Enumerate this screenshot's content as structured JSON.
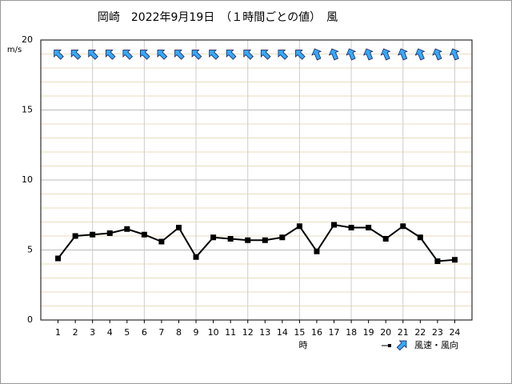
{
  "chart_data": {
    "type": "line",
    "title": "岡崎　2022年9月19日　（１時間ごとの値）　風",
    "y_label": "m/s",
    "x_label": "時",
    "x": [
      1,
      2,
      3,
      4,
      5,
      6,
      7,
      8,
      9,
      10,
      11,
      12,
      13,
      14,
      15,
      16,
      17,
      18,
      19,
      20,
      21,
      22,
      23,
      24
    ],
    "series": [
      {
        "name": "風速・風向",
        "color": "#000000",
        "arrow_color": "#33aaff",
        "values": [
          4.4,
          6.0,
          6.1,
          6.2,
          6.5,
          6.1,
          5.6,
          6.6,
          4.5,
          5.9,
          5.8,
          5.7,
          5.7,
          5.9,
          6.7,
          4.9,
          6.8,
          6.6,
          6.6,
          5.8,
          6.7,
          5.9,
          4.2,
          4.3
        ],
        "arrow_angles": [
          315,
          315,
          315,
          315,
          315,
          315,
          315,
          315,
          315,
          315,
          315,
          315,
          315,
          315,
          315,
          337.5,
          337.5,
          337.5,
          337.5,
          337.5,
          337.5,
          337.5,
          337.5,
          337.5
        ]
      }
    ],
    "xlim": [
      0,
      25
    ],
    "xticks": [
      1,
      2,
      3,
      4,
      5,
      6,
      7,
      8,
      9,
      10,
      11,
      12,
      13,
      14,
      15,
      16,
      17,
      18,
      19,
      20,
      21,
      22,
      23,
      24
    ],
    "xgrid": [
      3,
      6,
      9,
      12,
      15,
      18,
      21,
      24
    ],
    "ylim": [
      0,
      20
    ],
    "yticks": [
      0,
      5,
      10,
      15,
      20
    ],
    "minor_ygrid": 1,
    "arrow_level": 19
  }
}
